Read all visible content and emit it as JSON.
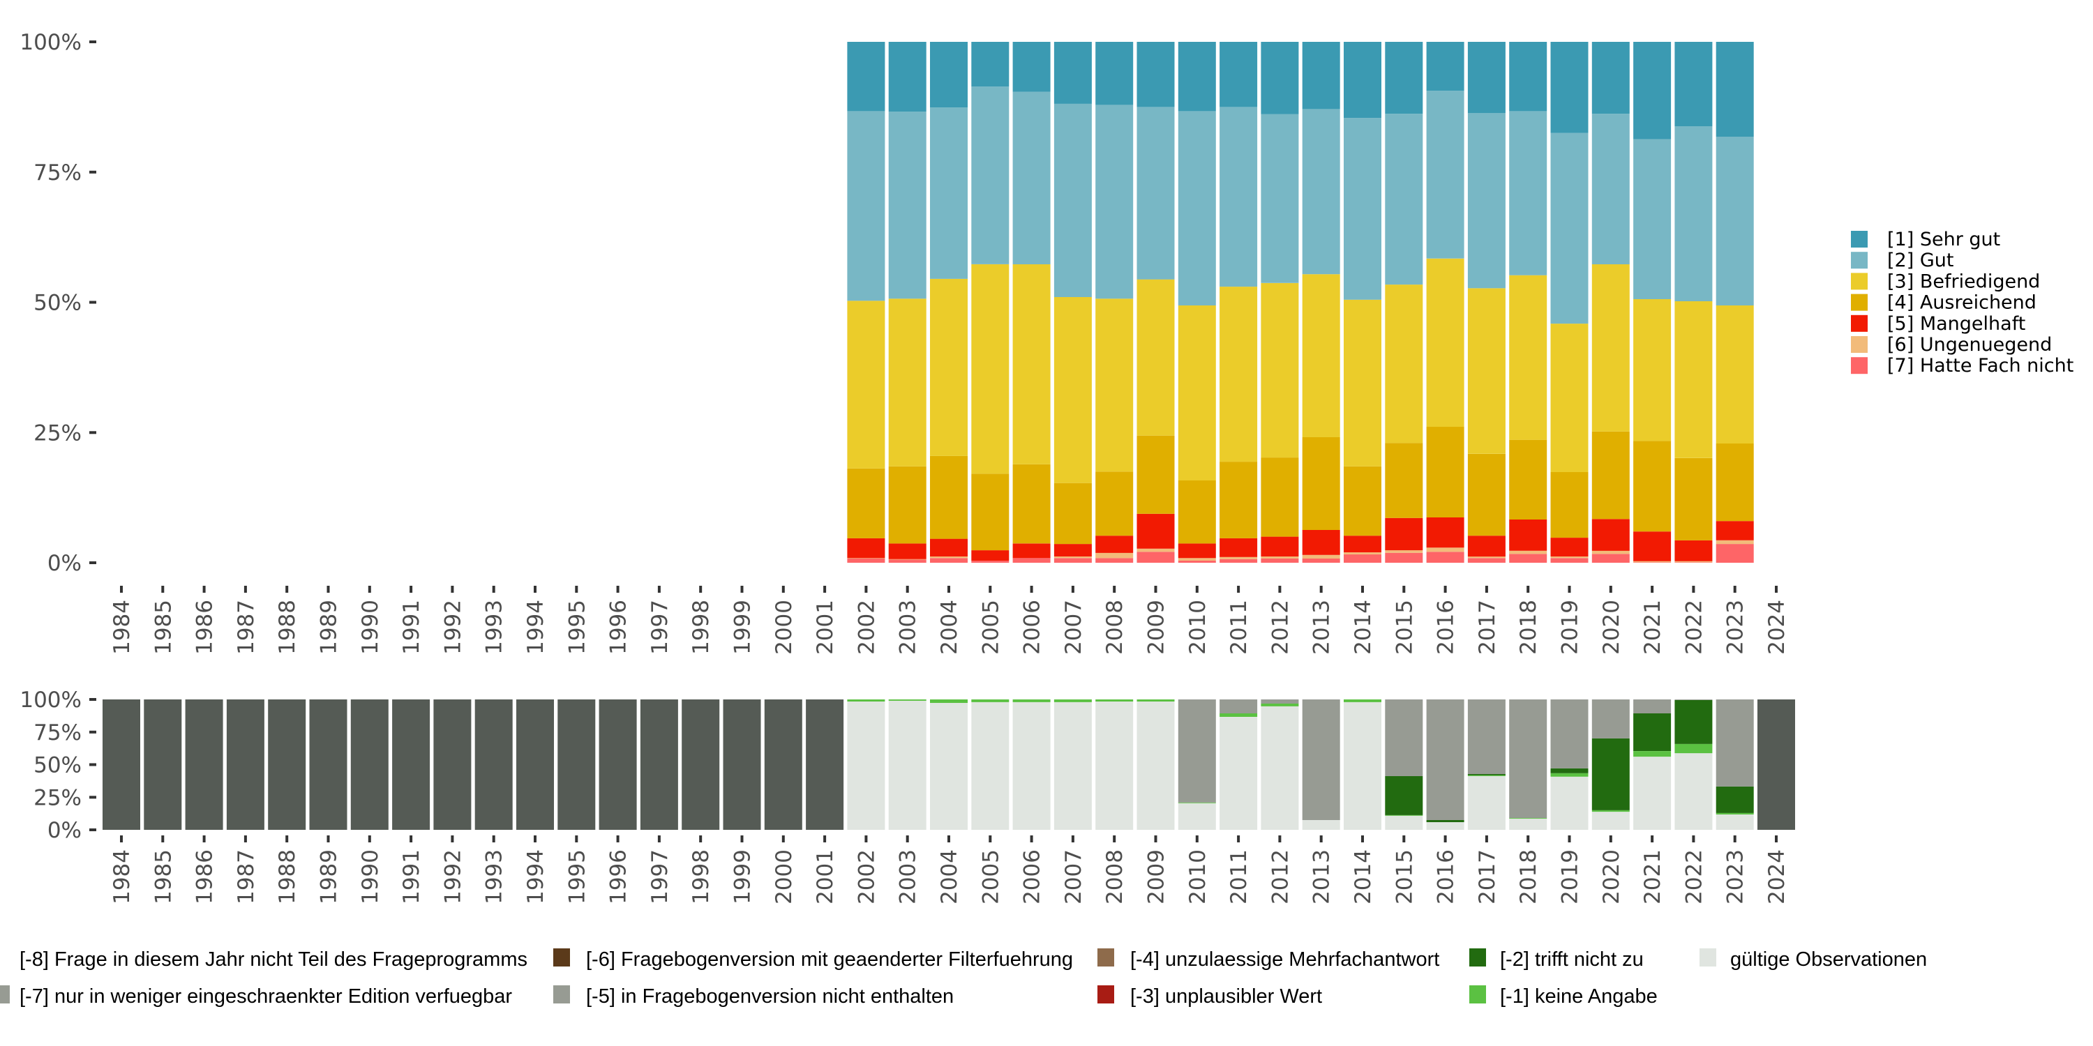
{
  "chart_data": [
    {
      "type": "bar",
      "stacked": true,
      "title": "",
      "xlabel": "",
      "ylabel": "",
      "ylim": [
        0,
        100
      ],
      "y_ticks": [
        "0%",
        "25%",
        "50%",
        "75%",
        "100%"
      ],
      "y_tick_values": [
        0,
        25,
        50,
        75,
        100
      ],
      "categories": [
        "1984",
        "1985",
        "1986",
        "1987",
        "1988",
        "1989",
        "1990",
        "1991",
        "1992",
        "1993",
        "1994",
        "1995",
        "1996",
        "1997",
        "1998",
        "1999",
        "2000",
        "2001",
        "2002",
        "2003",
        "2004",
        "2005",
        "2006",
        "2007",
        "2008",
        "2009",
        "2010",
        "2011",
        "2012",
        "2013",
        "2014",
        "2015",
        "2016",
        "2017",
        "2018",
        "2019",
        "2020",
        "2021",
        "2022",
        "2023",
        "2024"
      ],
      "legend_position": "right",
      "series": [
        {
          "name": "[7] Hatte Fach nicht",
          "color": "#fe6567",
          "values": [
            null,
            null,
            null,
            null,
            null,
            null,
            null,
            null,
            null,
            null,
            null,
            null,
            null,
            null,
            null,
            null,
            null,
            null,
            0.8,
            0.6,
            0.9,
            0.4,
            0.9,
            0.9,
            0.9,
            2.1,
            0.4,
            0.7,
            0.8,
            0.8,
            1.6,
            1.9,
            2.1,
            0.9,
            1.7,
            0.9,
            1.7,
            0.1,
            0.1,
            3.6,
            null
          ]
        },
        {
          "name": "[6] Ungenuegend",
          "color": "#f2bb7a",
          "values": [
            null,
            null,
            null,
            null,
            null,
            null,
            null,
            null,
            null,
            null,
            null,
            null,
            null,
            null,
            null,
            null,
            null,
            null,
            0.1,
            0.1,
            0.3,
            0.0,
            0.0,
            0.3,
            1.0,
            0.6,
            0.5,
            0.4,
            0.4,
            0.7,
            0.4,
            0.5,
            0.8,
            0.3,
            0.6,
            0.3,
            0.6,
            0.2,
            0.2,
            0.7,
            null
          ]
        },
        {
          "name": "[5] Mangelhaft",
          "color": "#f21a02",
          "values": [
            null,
            null,
            null,
            null,
            null,
            null,
            null,
            null,
            null,
            null,
            null,
            null,
            null,
            null,
            null,
            null,
            null,
            null,
            3.8,
            3.0,
            3.4,
            2.0,
            2.8,
            2.4,
            3.3,
            6.7,
            2.8,
            3.6,
            3.8,
            4.8,
            3.2,
            6.2,
            5.8,
            4.0,
            6.0,
            3.6,
            6.1,
            5.7,
            4.0,
            3.7,
            null
          ]
        },
        {
          "name": "[4] Ausreichend",
          "color": "#e0af00",
          "values": [
            null,
            null,
            null,
            null,
            null,
            null,
            null,
            null,
            null,
            null,
            null,
            null,
            null,
            null,
            null,
            null,
            null,
            null,
            13.4,
            14.8,
            15.9,
            14.7,
            15.2,
            11.7,
            12.3,
            15.0,
            12.1,
            14.7,
            15.2,
            17.8,
            13.3,
            14.4,
            17.4,
            15.7,
            15.3,
            12.6,
            16.8,
            17.4,
            15.8,
            14.9,
            null
          ]
        },
        {
          "name": "[3] Befriedigend",
          "color": "#ebcc2a",
          "values": [
            null,
            null,
            null,
            null,
            null,
            null,
            null,
            null,
            null,
            null,
            null,
            null,
            null,
            null,
            null,
            null,
            null,
            null,
            32.2,
            32.2,
            34.0,
            40.2,
            38.4,
            35.7,
            33.2,
            30.0,
            33.6,
            33.6,
            33.5,
            31.3,
            32.0,
            30.4,
            32.3,
            31.8,
            31.6,
            28.5,
            32.1,
            27.2,
            30.1,
            26.5,
            null
          ]
        },
        {
          "name": "[2] Gut",
          "color": "#78b7c5",
          "values": [
            null,
            null,
            null,
            null,
            null,
            null,
            null,
            null,
            null,
            null,
            null,
            null,
            null,
            null,
            null,
            null,
            null,
            null,
            36.4,
            35.9,
            32.9,
            34.1,
            33.1,
            37.1,
            37.2,
            33.1,
            37.3,
            34.5,
            32.4,
            31.7,
            34.9,
            32.8,
            32.2,
            33.6,
            31.5,
            36.6,
            28.9,
            30.7,
            33.6,
            32.4,
            null
          ]
        },
        {
          "name": "[1] Sehr gut",
          "color": "#3b9ab2",
          "values": [
            null,
            null,
            null,
            null,
            null,
            null,
            null,
            null,
            null,
            null,
            null,
            null,
            null,
            null,
            null,
            null,
            null,
            null,
            13.3,
            13.4,
            12.6,
            8.6,
            9.6,
            11.9,
            12.1,
            12.5,
            13.3,
            12.5,
            13.9,
            12.9,
            14.6,
            13.8,
            9.4,
            13.7,
            13.3,
            17.5,
            13.8,
            18.7,
            16.2,
            18.2,
            null
          ]
        }
      ],
      "legend": [
        {
          "label": "[1] Sehr gut",
          "color": "#3b9ab2"
        },
        {
          "label": "[2] Gut",
          "color": "#78b7c5"
        },
        {
          "label": "[3] Befriedigend",
          "color": "#ebcc2a"
        },
        {
          "label": "[4] Ausreichend",
          "color": "#e0af00"
        },
        {
          "label": "[5] Mangelhaft",
          "color": "#f21a02"
        },
        {
          "label": "[6] Ungenuegend",
          "color": "#f2bb7a"
        },
        {
          "label": "[7] Hatte Fach nicht",
          "color": "#fe6567"
        }
      ]
    },
    {
      "type": "bar",
      "stacked": true,
      "title": "",
      "xlabel": "",
      "ylabel": "",
      "ylim": [
        0,
        100
      ],
      "y_ticks": [
        "0%",
        "25%",
        "50%",
        "75%",
        "100%"
      ],
      "y_tick_values": [
        0,
        25,
        50,
        75,
        100
      ],
      "categories": [
        "1984",
        "1985",
        "1986",
        "1987",
        "1988",
        "1989",
        "1990",
        "1991",
        "1992",
        "1993",
        "1994",
        "1995",
        "1996",
        "1997",
        "1998",
        "1999",
        "2000",
        "2001",
        "2002",
        "2003",
        "2004",
        "2005",
        "2006",
        "2007",
        "2008",
        "2009",
        "2010",
        "2011",
        "2012",
        "2013",
        "2014",
        "2015",
        "2016",
        "2017",
        "2018",
        "2019",
        "2020",
        "2021",
        "2022",
        "2023",
        "2024"
      ],
      "legend_position": "bottom",
      "series": [
        {
          "name": "gültige Observationen",
          "color": "#e0e5e0",
          "values": [
            0,
            0,
            0,
            0,
            0,
            0,
            0,
            0,
            0,
            0,
            0,
            0,
            0,
            0,
            0,
            0,
            0,
            0,
            98.4,
            99.0,
            97.3,
            97.9,
            97.9,
            97.9,
            98.4,
            98.4,
            20.4,
            86.6,
            94.7,
            7.5,
            97.9,
            10.8,
            5.9,
            41.2,
            8.6,
            40.7,
            13.9,
            56.1,
            58.8,
            11.8,
            0
          ]
        },
        {
          "name": "[-1] keine Angabe",
          "color": "#5bc142",
          "values": [
            0,
            0,
            0,
            0,
            0,
            0,
            0,
            0,
            0,
            0,
            0,
            0,
            0,
            0,
            0,
            0,
            0,
            0,
            1.6,
            1.0,
            2.7,
            2.1,
            2.1,
            2.1,
            1.6,
            1.6,
            0.5,
            2.7,
            2.1,
            0,
            2.1,
            0.5,
            0,
            0.7,
            0.5,
            2.7,
            1.1,
            4.3,
            7.0,
            1.1,
            0
          ]
        },
        {
          "name": "[-2] trifft nicht zu",
          "color": "#226b10",
          "values": [
            0,
            0,
            0,
            0,
            0,
            0,
            0,
            0,
            0,
            0,
            0,
            0,
            0,
            0,
            0,
            0,
            0,
            0,
            0,
            0,
            0,
            0,
            0,
            0,
            0,
            0,
            0,
            0,
            0,
            0,
            0,
            29.9,
            1.6,
            0.9,
            0,
            3.7,
            55.1,
            28.9,
            33.7,
            20.3,
            0
          ]
        },
        {
          "name": "[-3] unplausibler Wert",
          "color": "#a81c14",
          "values": [
            0,
            0,
            0,
            0,
            0,
            0,
            0,
            0,
            0,
            0,
            0,
            0,
            0,
            0,
            0,
            0,
            0,
            0,
            0,
            0,
            0,
            0,
            0,
            0,
            0,
            0,
            0,
            0,
            0,
            0,
            0,
            0,
            0,
            0,
            0,
            0,
            0,
            0,
            0,
            0,
            0
          ]
        },
        {
          "name": "[-4] unzulaessige Mehrfachantwort",
          "color": "#8e6b4b",
          "values": [
            0,
            0,
            0,
            0,
            0,
            0,
            0,
            0,
            0,
            0,
            0,
            0,
            0,
            0,
            0,
            0,
            0,
            0,
            0,
            0,
            0,
            0,
            0,
            0,
            0,
            0,
            0,
            0,
            0,
            0,
            0,
            0,
            0,
            0,
            0,
            0,
            0,
            0,
            0,
            0,
            0
          ]
        },
        {
          "name": "[-5] in Fragebogenversion nicht enthalten",
          "color": "#979b93",
          "values": [
            0,
            0,
            0,
            0,
            0,
            0,
            0,
            0,
            0,
            0,
            0,
            0,
            0,
            0,
            0,
            0,
            0,
            0,
            0,
            0,
            0,
            0,
            0,
            0,
            0,
            0,
            79.1,
            10.7,
            3.2,
            92.5,
            0,
            58.8,
            92.5,
            57.2,
            90.9,
            52.9,
            29.9,
            10.7,
            0.5,
            66.8,
            0
          ]
        },
        {
          "name": "[-6] Fragebogenversion mit geaenderter Filterfuehrung",
          "color": "#5b3a1a",
          "values": [
            0,
            0,
            0,
            0,
            0,
            0,
            0,
            0,
            0,
            0,
            0,
            0,
            0,
            0,
            0,
            0,
            0,
            0,
            0,
            0,
            0,
            0,
            0,
            0,
            0,
            0,
            0,
            0,
            0,
            0,
            0,
            0,
            0,
            0,
            0,
            0,
            0,
            0,
            0,
            0,
            0
          ]
        },
        {
          "name": "[-7] nur in weniger eingeschraenkter Edition verfuegbar",
          "color": "#979b93",
          "values": [
            0,
            0,
            0,
            0,
            0,
            0,
            0,
            0,
            0,
            0,
            0,
            0,
            0,
            0,
            0,
            0,
            0,
            0,
            0,
            0,
            0,
            0,
            0,
            0,
            0,
            0,
            0,
            0,
            0,
            0,
            0,
            0,
            0,
            0,
            0,
            0,
            0,
            0,
            0,
            0,
            0
          ]
        },
        {
          "name": "[-8] Frage in diesem Jahr nicht Teil des Frageprogramms",
          "color": "#555b55",
          "values": [
            100,
            100,
            100,
            100,
            100,
            100,
            100,
            100,
            100,
            100,
            100,
            100,
            100,
            100,
            100,
            100,
            100,
            100,
            0,
            0,
            0,
            0,
            0,
            0,
            0,
            0,
            0,
            0,
            0,
            0,
            0,
            0,
            0,
            0,
            0,
            0,
            0,
            0,
            0,
            0,
            100
          ]
        }
      ],
      "legend": [
        {
          "label": "[-8] Frage in diesem Jahr nicht Teil des Frageprogramms",
          "color": "#555b55"
        },
        {
          "label": "[-7] nur in weniger eingeschraenkter Edition verfuegbar",
          "color": "#979b93"
        },
        {
          "label": "[-6] Fragebogenversion mit geaenderter Filterfuehrung",
          "color": "#5b3a1a"
        },
        {
          "label": "[-5] in Fragebogenversion nicht enthalten",
          "color": "#979b93"
        },
        {
          "label": "[-4] unzulaessige Mehrfachantwort",
          "color": "#8e6b4b"
        },
        {
          "label": "[-3] unplausibler Wert",
          "color": "#a81c14"
        },
        {
          "label": "[-2] trifft nicht zu",
          "color": "#226b10"
        },
        {
          "label": "[-1] keine Angabe",
          "color": "#5bc142"
        },
        {
          "label": "gültige Observationen",
          "color": "#e0e5e0"
        }
      ]
    }
  ]
}
